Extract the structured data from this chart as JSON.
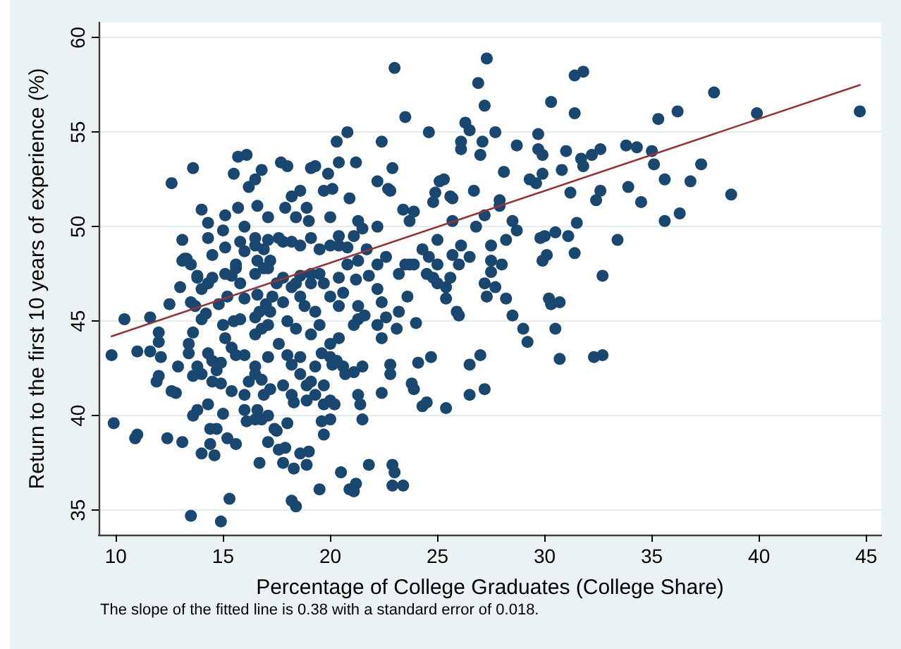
{
  "chart_data": {
    "type": "scatter",
    "xlabel": "Percentage of College Graduates (College Share)",
    "ylabel": "Return to the first 10 years of experience (%)",
    "annotations": [
      "The slope of the fitted line is 0.38 with a standard error of 0.018."
    ],
    "xlim": [
      9.2,
      45.7
    ],
    "ylim": [
      33.7,
      60.8
    ],
    "xticks": [
      10,
      15,
      20,
      25,
      30,
      35,
      40,
      45
    ],
    "yticks": [
      35,
      40,
      45,
      50,
      55,
      60
    ],
    "grid": "y",
    "marker": "circle",
    "series": [
      {
        "color": "#1a476f",
        "x": [
          12.6,
          13.6,
          13.1,
          14.0,
          14.3,
          14.3,
          15.5,
          15.7,
          16.1,
          16.2,
          16.5,
          16.8,
          16.6,
          15.1,
          15.7,
          17.7,
          18.0,
          17.9,
          18.2,
          18.6,
          19.1,
          19.3,
          19.9,
          19.7,
          20.3,
          20.8,
          20.4,
          21.2,
          20.9,
          20.1,
          18.9,
          19.0,
          22.4,
          23.0,
          23.5,
          24.6,
          22.9,
          22.2,
          22.7,
          22.8,
          23.4,
          23.9,
          25.1,
          24.9,
          25.3,
          25.7,
          27.3,
          26.9,
          27.2,
          31.4,
          31.8,
          30.3,
          31.4,
          26.3,
          26.5,
          26.1,
          26.1,
          27.1,
          27.0,
          27.7,
          28.7,
          29.7,
          29.7,
          29.9,
          31.0,
          31.7,
          31.8,
          32.2,
          32.6,
          33.8,
          34.3,
          35.0,
          35.1,
          35.3,
          36.2,
          37.9,
          39.9,
          44.7,
          37.3,
          35.6,
          36.8,
          38.7,
          33.9,
          34.5,
          35.6,
          36.3,
          33.4,
          32.7,
          32.4,
          32.6,
          31.2,
          30.8,
          29.9,
          29.3,
          29.6,
          28.1,
          27.9,
          27.9,
          27.2,
          26.7,
          28.5,
          28.7,
          28.2,
          29.8,
          30.0,
          30.5,
          31.1,
          31.5,
          31.4,
          29.9,
          30.1,
          27.5,
          27.5,
          27.5,
          28.0,
          26.8,
          25.6,
          27.2,
          27.7,
          27.3,
          28.2,
          28.5,
          29.0,
          29.2,
          30.2,
          30.3,
          30.7,
          30.5,
          30.7,
          32.3,
          32.7,
          25.9,
          26.0,
          25.4,
          25.0,
          25.4,
          25.6,
          24.7,
          26.5,
          27.0,
          26.5,
          27.2,
          25.4,
          24.5,
          24.5,
          9.8,
          9.9,
          10.4,
          11.0,
          11.0,
          10.9,
          11.6,
          11.6,
          12.0,
          12.0,
          12.1,
          11.9,
          12.0,
          12.4,
          13.1,
          12.6,
          12.8,
          12.5,
          13.0,
          13.1,
          13.3,
          13.5,
          14.9,
          15.3,
          13.6,
          13.8,
          14.0,
          14.4,
          14.6,
          14.7,
          14.4,
          15.0,
          15.2,
          15.6,
          16.0,
          16.0,
          16.1,
          16.6,
          16.8,
          17.1,
          17.4,
          16.7,
          17.6,
          17.8,
          17.9,
          18.2,
          18.4,
          18.3,
          18.6,
          19.0,
          18.9,
          19.5,
          19.7,
          19.6,
          20.0,
          19.7,
          20.5,
          20.9,
          21.1,
          21.2,
          21.8,
          22.9,
          23.0,
          22.9,
          23.4,
          21.4,
          21.5,
          21.3,
          22.4,
          23.9,
          23.8,
          24.1,
          24.3,
          24.0,
          23.5,
          23.6,
          22.8,
          22.8,
          21.8,
          22.2,
          22.4,
          22.4,
          20.7,
          21.1,
          21.5,
          20.1,
          20.3,
          13.8,
          14.3,
          14.0,
          13.5,
          13.7,
          13.6,
          13.4,
          13.8,
          14.0,
          14.5,
          14.7,
          14.9,
          15.1,
          15.4,
          15.6,
          15.0,
          15.4,
          15.6,
          15.8,
          15.2,
          16.0,
          16.6,
          16.9,
          16.6,
          17.0,
          16.5,
          16.8,
          17.2,
          16.0,
          16.5,
          16.8,
          17.2,
          17.8,
          17.6,
          18.0,
          18.2,
          17.8,
          18.2,
          18.6,
          18.6,
          19.1,
          19.3,
          19.7,
          18.9,
          18.3,
          19.1,
          19.5,
          20.0,
          19.6,
          20.6,
          19.1,
          19.5,
          20.0,
          20.4,
          20.8,
          21.2,
          21.3,
          21.6,
          22.2,
          22.6,
          23.2,
          23.1,
          23.7,
          24.8,
          20.0,
          20.2,
          17.1,
          17.5,
          13.2,
          13.5,
          13.8,
          14.5,
          15.1,
          15.6,
          16.0,
          16.5,
          16.9,
          17.2,
          17.6,
          18.2,
          18.6,
          19.1,
          19.5,
          20.0,
          20.4,
          20.8,
          21.3,
          21.7,
          22.2,
          22.6,
          23.2,
          23.9,
          24.3,
          25.0,
          25.7,
          24.8,
          25.7,
          25.0,
          26.1,
          26.5,
          26.0,
          24.6,
          18.4,
          20.0,
          21.3,
          22.2,
          23.7,
          17.1,
          16.0,
          15.0,
          14.2,
          14.8,
          15.5,
          17.5,
          18.0,
          18.8,
          14.5,
          15.1,
          15.8,
          16.5,
          17.1,
          17.8,
          20.4,
          21.1,
          21.5,
          16.5,
          17.1,
          17.8,
          18.4,
          19.1,
          19.7,
          20.4,
          16.7,
          17.3,
          18.6,
          19.3,
          20.6,
          21.3,
          14.0,
          15.8,
          16.5,
          17.1,
          18.4,
          20.4,
          21.1,
          13.4,
          14.3,
          14.9,
          16.5,
          17.1,
          18.6,
          19.3,
          20.0,
          13.6,
          14.5,
          15.4,
          16.2,
          16.9,
          18.2,
          18.9,
          12.9,
          14.3,
          16.5,
          18.0
        ],
        "values": [
          52.3,
          53.1,
          49.3,
          50.9,
          50.2,
          49.4,
          52.8,
          53.7,
          53.8,
          52.1,
          52.5,
          53.0,
          51.1,
          50.6,
          51.0,
          53.4,
          53.2,
          51.0,
          51.6,
          51.9,
          53.1,
          53.2,
          52.8,
          51.9,
          54.5,
          55.0,
          53.4,
          53.4,
          51.5,
          52.0,
          51.0,
          50.3,
          54.5,
          58.4,
          55.8,
          55.0,
          53.1,
          52.4,
          52.0,
          51.9,
          50.9,
          50.8,
          52.4,
          51.8,
          52.5,
          51.5,
          58.9,
          57.6,
          56.4,
          58.0,
          58.2,
          56.6,
          56.0,
          55.5,
          55.1,
          54.5,
          54.1,
          54.5,
          53.8,
          55.0,
          54.3,
          54.9,
          54.1,
          53.8,
          54.0,
          53.6,
          53.2,
          53.8,
          54.1,
          54.3,
          54.2,
          54.0,
          53.3,
          55.7,
          56.1,
          57.1,
          56.0,
          56.1,
          53.3,
          52.5,
          52.4,
          51.7,
          52.1,
          51.3,
          50.3,
          50.7,
          49.3,
          47.4,
          51.4,
          51.9,
          51.8,
          53.0,
          52.8,
          52.5,
          52.3,
          52.9,
          51.4,
          51.1,
          50.6,
          51.9,
          50.3,
          49.8,
          49.3,
          49.4,
          49.5,
          49.7,
          49.5,
          50.2,
          48.6,
          48.2,
          48.5,
          49.0,
          48.2,
          47.6,
          48.0,
          50.0,
          51.6,
          47.0,
          46.8,
          46.3,
          46.2,
          45.3,
          44.6,
          43.9,
          46.2,
          45.9,
          46.0,
          44.6,
          43.0,
          43.1,
          43.2,
          45.5,
          45.3,
          46.2,
          47.0,
          46.8,
          47.3,
          43.1,
          42.7,
          43.2,
          41.1,
          41.4,
          40.4,
          40.7,
          47.5,
          43.2,
          39.6,
          45.1,
          43.4,
          39.0,
          38.8,
          45.2,
          43.4,
          44.4,
          43.9,
          43.1,
          41.8,
          42.1,
          38.8,
          38.6,
          41.3,
          41.2,
          45.9,
          46.8,
          48.2,
          48.3,
          34.7,
          34.4,
          35.6,
          40.0,
          40.3,
          38.0,
          38.5,
          37.9,
          39.3,
          39.3,
          40.1,
          38.8,
          38.5,
          41.1,
          40.3,
          39.7,
          40.3,
          39.8,
          40.0,
          39.3,
          37.5,
          38.2,
          37.5,
          38.3,
          35.5,
          35.2,
          37.2,
          38.0,
          38.1,
          37.4,
          36.1,
          39.0,
          39.7,
          40.8,
          40.6,
          37.0,
          36.1,
          36.0,
          36.4,
          37.4,
          37.4,
          37.0,
          36.3,
          36.3,
          40.6,
          39.8,
          41.1,
          41.2,
          41.4,
          41.7,
          42.8,
          40.5,
          44.9,
          48.0,
          46.3,
          42.2,
          42.7,
          47.4,
          46.7,
          46.0,
          44.1,
          42.2,
          42.3,
          42.6,
          42.7,
          42.9,
          47.4,
          47.0,
          46.7,
          46.0,
          45.8,
          44.4,
          43.3,
          42.6,
          42.2,
          42.9,
          42.4,
          41.7,
          44.1,
          43.6,
          43.2,
          44.8,
          47.4,
          47.8,
          47.0,
          46.3,
          46.2,
          48.2,
          47.8,
          46.4,
          45.9,
          45.2,
          44.6,
          45.5,
          43.2,
          42.2,
          41.9,
          41.4,
          41.6,
          43.8,
          43.2,
          42.7,
          46.0,
          46.8,
          47.4,
          42.2,
          41.8,
          41.1,
          41.6,
          40.8,
          40.7,
          44.3,
          44.8,
          43.8,
          43.3,
          42.6,
          47.0,
          47.5,
          46.3,
          45.8,
          48.0,
          47.2,
          45.1,
          45.3,
          44.8,
          45.2,
          45.5,
          44.6,
          48.0,
          47.3,
          39.8,
          40.6,
          38.6,
          39.2,
          48.3,
          48.0,
          47.3,
          47.3,
          47.5,
          48.0,
          48.7,
          49.0,
          48.8,
          48.2,
          49.4,
          49.2,
          49.0,
          49.4,
          48.8,
          49.0,
          49.5,
          48.9,
          48.2,
          48.8,
          48.0,
          48.4,
          47.5,
          48.0,
          48.8,
          48.0,
          48.5,
          51.3,
          50.3,
          49.3,
          49.0,
          48.4,
          48.0,
          48.4,
          50.5,
          50.5,
          50.3,
          50.0,
          50.3,
          50.5,
          50.0,
          49.8,
          45.4,
          45.9,
          45.0,
          47.0,
          45.0,
          45.8,
          48.5,
          48.9,
          49.2,
          49.4,
          49.3,
          49.2,
          49.0,
          49.5,
          49.9,
          47.5,
          47.8,
          47.3,
          47.0,
          47.5,
          47.0,
          47.3,
          45.5,
          46.3,
          46.3,
          45.5,
          46.5,
          45.8,
          45.1,
          45.1,
          44.3,
          44.8,
          44.6,
          44.1,
          44.8,
          43.8,
          43.3,
          42.8,
          42.6,
          43.1,
          43.1,
          42.6,
          43.1,
          42.1,
          41.8,
          41.3,
          41.8,
          41.1,
          41.1,
          41.6,
          42.6,
          40.6,
          39.8,
          39.6
        ]
      },
      {
        "type": "line",
        "color": "#90353b",
        "marker": "none",
        "x": [
          9.8,
          44.7
        ],
        "values": [
          44.2,
          57.5
        ]
      }
    ]
  }
}
